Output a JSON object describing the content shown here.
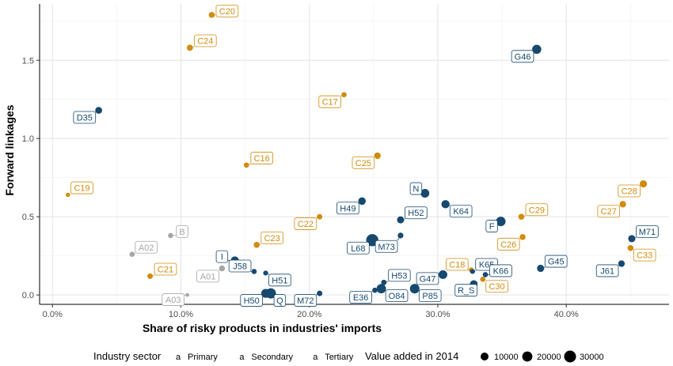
{
  "chart_data": {
    "type": "scatter",
    "xlabel": "Share of risky products in industries' imports",
    "ylabel": "Forward linkages",
    "xlim": [
      -0.01,
      0.48
    ],
    "ylim": [
      -0.06,
      1.86
    ],
    "x_ticks": [
      0.0,
      0.1,
      0.2,
      0.3,
      0.4
    ],
    "x_tick_labels": [
      "0.0%",
      "10.0%",
      "20.0%",
      "30.0%",
      "40.0%"
    ],
    "y_ticks": [
      0.0,
      0.5,
      1.0,
      1.5
    ],
    "y_tick_labels": [
      "0.0",
      "0.5",
      "1.0",
      "1.5"
    ],
    "grid": true,
    "legend_position": "bottom",
    "colors": {
      "Primary": "#a6a6a6",
      "Secondary": "#d08c0e",
      "Tertiary": "#17496f"
    },
    "legend": {
      "color_title": "Industry sector",
      "color_symbol": "a",
      "color_entries": [
        "Primary",
        "Secondary",
        "Tertiary"
      ],
      "size_title": "Value added in 2014",
      "size_entries": [
        {
          "label": "10000",
          "value": 10000
        },
        {
          "label": "20000",
          "value": 20000
        },
        {
          "label": "30000",
          "value": 30000
        }
      ]
    },
    "points": [
      {
        "label": "A01",
        "x": 0.132,
        "y": 0.17,
        "sector": "Primary",
        "size": 4000,
        "lx": 0.121,
        "ly": 0.12
      },
      {
        "label": "A02",
        "x": 0.062,
        "y": 0.26,
        "sector": "Primary",
        "size": 2500,
        "lx": 0.073,
        "ly": 0.305
      },
      {
        "label": "A03",
        "x": 0.105,
        "y": 0.0,
        "sector": "Primary",
        "size": 500,
        "lx": 0.094,
        "ly": -0.03
      },
      {
        "label": "B",
        "x": 0.092,
        "y": 0.38,
        "sector": "Primary",
        "size": 2500,
        "lx": 0.101,
        "ly": 0.405
      },
      {
        "label": "C16",
        "x": 0.151,
        "y": 0.83,
        "sector": "Secondary",
        "size": 2500,
        "lx": 0.163,
        "ly": 0.875
      },
      {
        "label": "C17",
        "x": 0.227,
        "y": 1.28,
        "sector": "Secondary",
        "size": 2500,
        "lx": 0.216,
        "ly": 1.235
      },
      {
        "label": "C18",
        "x": 0.326,
        "y": 0.16,
        "sector": "Secondary",
        "size": 2000,
        "lx": 0.315,
        "ly": 0.195
      },
      {
        "label": "C19",
        "x": 0.012,
        "y": 0.64,
        "sector": "Secondary",
        "size": 1000,
        "lx": 0.023,
        "ly": 0.685
      },
      {
        "label": "C20",
        "x": 0.124,
        "y": 1.79,
        "sector": "Secondary",
        "size": 4000,
        "lx": 0.136,
        "ly": 1.815
      },
      {
        "label": "C21",
        "x": 0.076,
        "y": 0.12,
        "sector": "Secondary",
        "size": 3000,
        "lx": 0.088,
        "ly": 0.165
      },
      {
        "label": "C22",
        "x": 0.208,
        "y": 0.5,
        "sector": "Secondary",
        "size": 3000,
        "lx": 0.197,
        "ly": 0.455
      },
      {
        "label": "C23",
        "x": 0.159,
        "y": 0.32,
        "sector": "Secondary",
        "size": 4000,
        "lx": 0.171,
        "ly": 0.365
      },
      {
        "label": "C24",
        "x": 0.107,
        "y": 1.58,
        "sector": "Secondary",
        "size": 4500,
        "lx": 0.119,
        "ly": 1.625
      },
      {
        "label": "C25",
        "x": 0.253,
        "y": 0.89,
        "sector": "Secondary",
        "size": 5500,
        "lx": 0.242,
        "ly": 0.845
      },
      {
        "label": "C26",
        "x": 0.366,
        "y": 0.37,
        "sector": "Secondary",
        "size": 4000,
        "lx": 0.355,
        "ly": 0.325
      },
      {
        "label": "C27",
        "x": 0.444,
        "y": 0.58,
        "sector": "Secondary",
        "size": 5500,
        "lx": 0.433,
        "ly": 0.535
      },
      {
        "label": "C28",
        "x": 0.46,
        "y": 0.71,
        "sector": "Secondary",
        "size": 7500,
        "lx": 0.449,
        "ly": 0.665
      },
      {
        "label": "C29",
        "x": 0.365,
        "y": 0.5,
        "sector": "Secondary",
        "size": 4000,
        "lx": 0.377,
        "ly": 0.545
      },
      {
        "label": "C30",
        "x": 0.335,
        "y": 0.1,
        "sector": "Secondary",
        "size": 2500,
        "lx": 0.346,
        "ly": 0.055
      },
      {
        "label": "C33",
        "x": 0.45,
        "y": 0.3,
        "sector": "Secondary",
        "size": 4000,
        "lx": 0.461,
        "ly": 0.255
      },
      {
        "label": "D35",
        "x": 0.036,
        "y": 1.18,
        "sector": "Tertiary",
        "size": 6500,
        "lx": 0.025,
        "ly": 1.135
      },
      {
        "label": "E36",
        "x": 0.251,
        "y": 0.03,
        "sector": "Tertiary",
        "size": 2500,
        "lx": 0.24,
        "ly": -0.015
      },
      {
        "label": "F",
        "x": 0.349,
        "y": 0.47,
        "sector": "Tertiary",
        "size": 17000,
        "lx": 0.342,
        "ly": 0.44
      },
      {
        "label": "G45",
        "x": 0.38,
        "y": 0.17,
        "sector": "Tertiary",
        "size": 7500,
        "lx": 0.392,
        "ly": 0.215
      },
      {
        "label": "G46",
        "x": 0.377,
        "y": 1.57,
        "sector": "Tertiary",
        "size": 15000,
        "lx": 0.366,
        "ly": 1.525
      },
      {
        "label": "G47",
        "x": 0.304,
        "y": 0.13,
        "sector": "Tertiary",
        "size": 13000,
        "lx": 0.292,
        "ly": 0.105
      },
      {
        "label": "H49",
        "x": 0.241,
        "y": 0.6,
        "sector": "Tertiary",
        "size": 8500,
        "lx": 0.23,
        "ly": 0.555
      },
      {
        "label": "H50",
        "x": 0.166,
        "y": 0.01,
        "sector": "Tertiary",
        "size": 14000,
        "lx": 0.155,
        "ly": -0.035
      },
      {
        "label": "H51",
        "x": 0.166,
        "y": 0.14,
        "sector": "Tertiary",
        "size": 2000,
        "lx": 0.177,
        "ly": 0.095
      },
      {
        "label": "H52",
        "x": 0.271,
        "y": 0.48,
        "sector": "Tertiary",
        "size": 7000,
        "lx": 0.283,
        "ly": 0.525
      },
      {
        "label": "H53",
        "x": 0.258,
        "y": 0.08,
        "sector": "Tertiary",
        "size": 3000,
        "lx": 0.27,
        "ly": 0.125
      },
      {
        "label": "I",
        "x": 0.142,
        "y": 0.22,
        "sector": "Tertiary",
        "size": 11000,
        "lx": 0.132,
        "ly": 0.245
      },
      {
        "label": "J58",
        "x": 0.157,
        "y": 0.15,
        "sector": "Tertiary",
        "size": 2500,
        "lx": 0.146,
        "ly": 0.185
      },
      {
        "label": "J61",
        "x": 0.443,
        "y": 0.2,
        "sector": "Tertiary",
        "size": 5500,
        "lx": 0.432,
        "ly": 0.155
      },
      {
        "label": "K64",
        "x": 0.306,
        "y": 0.58,
        "sector": "Tertiary",
        "size": 11000,
        "lx": 0.318,
        "ly": 0.535
      },
      {
        "label": "K65",
        "x": 0.327,
        "y": 0.15,
        "sector": "Tertiary",
        "size": 2000,
        "lx": 0.338,
        "ly": 0.195
      },
      {
        "label": "K66",
        "x": 0.337,
        "y": 0.13,
        "sector": "Tertiary",
        "size": 2500,
        "lx": 0.349,
        "ly": 0.155
      },
      {
        "label": "L68",
        "x": 0.249,
        "y": 0.35,
        "sector": "Tertiary",
        "size": 32000,
        "lx": 0.238,
        "ly": 0.3
      },
      {
        "label": "M71",
        "x": 0.451,
        "y": 0.36,
        "sector": "Tertiary",
        "size": 7500,
        "lx": 0.463,
        "ly": 0.405
      },
      {
        "label": "M72",
        "x": 0.208,
        "y": 0.01,
        "sector": "Tertiary",
        "size": 3000,
        "lx": 0.197,
        "ly": -0.035
      },
      {
        "label": "M73",
        "x": 0.271,
        "y": 0.38,
        "sector": "Tertiary",
        "size": 3500,
        "lx": 0.26,
        "ly": 0.31
      },
      {
        "label": "N",
        "x": 0.29,
        "y": 0.65,
        "sector": "Tertiary",
        "size": 13000,
        "lx": 0.283,
        "ly": 0.68
      },
      {
        "label": "O84",
        "x": 0.256,
        "y": 0.04,
        "sector": "Tertiary",
        "size": 16000,
        "lx": 0.268,
        "ly": -0.005
      },
      {
        "label": "P85",
        "x": 0.282,
        "y": 0.04,
        "sector": "Tertiary",
        "size": 17000,
        "lx": 0.294,
        "ly": -0.005
      },
      {
        "label": "Q",
        "x": 0.17,
        "y": 0.01,
        "sector": "Tertiary",
        "size": 21000,
        "lx": 0.177,
        "ly": -0.035
      },
      {
        "label": "R_S",
        "x": 0.328,
        "y": 0.07,
        "sector": "Tertiary",
        "size": 9000,
        "lx": 0.322,
        "ly": 0.03
      }
    ]
  }
}
